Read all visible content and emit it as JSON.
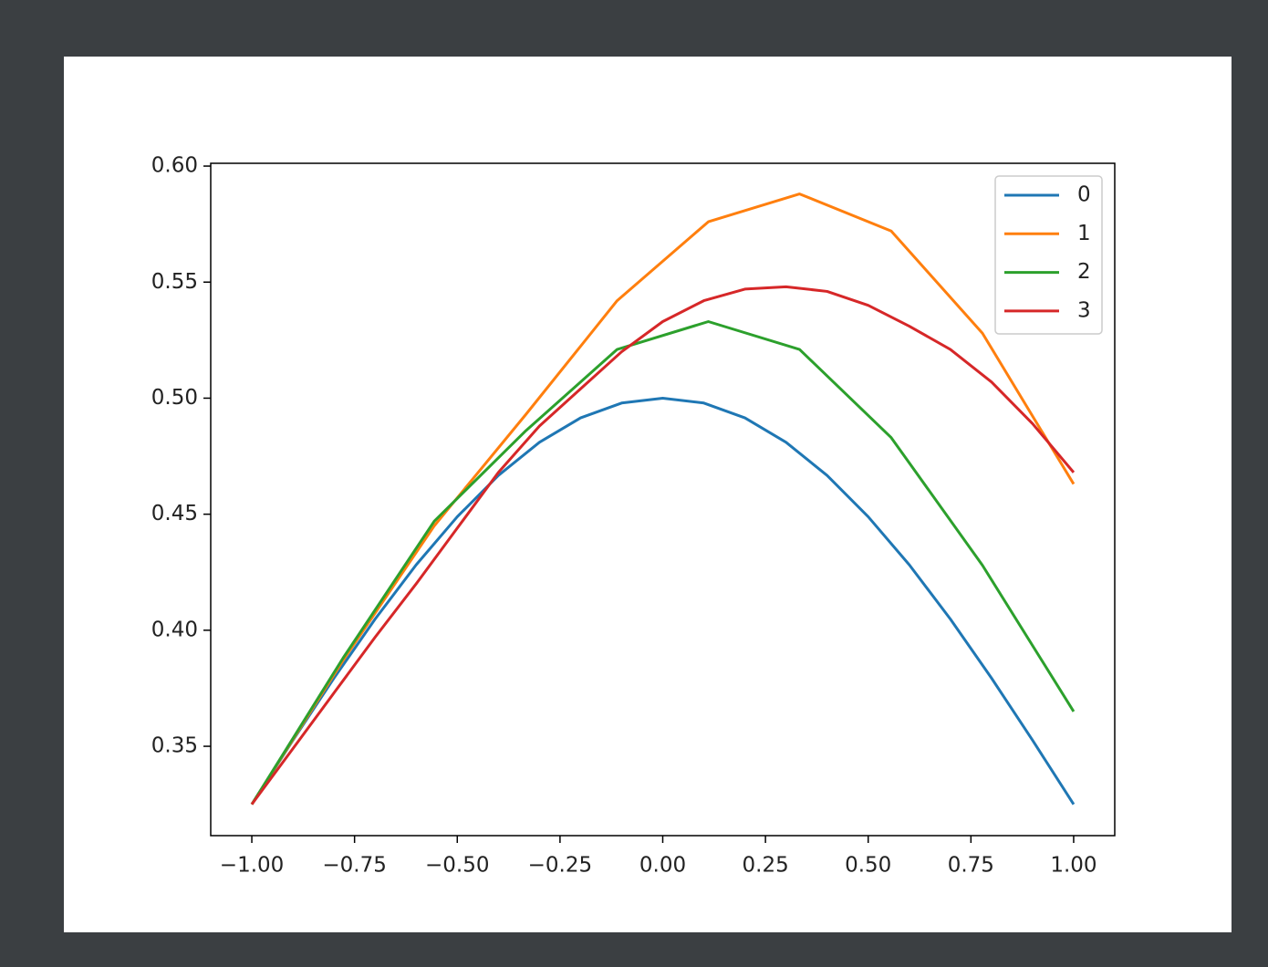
{
  "chart_data": {
    "type": "line",
    "xlim": [
      -1.1,
      1.1
    ],
    "ylim": [
      0.3115,
      0.6012
    ],
    "xticks": [
      {
        "value": -1,
        "label": "−1.00"
      },
      {
        "value": -0.75,
        "label": "−0.75"
      },
      {
        "value": -0.5,
        "label": "−0.50"
      },
      {
        "value": -0.25,
        "label": "−0.25"
      },
      {
        "value": 0,
        "label": "0.00"
      },
      0.25,
      {
        "value": 0.5,
        "label": "0.50"
      },
      0.75,
      {
        "value": 1,
        "label": "1.00"
      }
    ],
    "yticks": [
      0.35,
      {
        "value": 0.4,
        "label": "0.40"
      },
      0.45,
      {
        "value": 0.5,
        "label": "0.50"
      },
      0.55,
      {
        "value": 0.6,
        "label": "0.60"
      }
    ],
    "legend": "upper right",
    "series": [
      {
        "name": "0",
        "color": "#1f77b4",
        "x": [
          -1,
          -0.9,
          -0.8,
          -0.7,
          -0.6,
          -0.5,
          -0.4,
          -0.3,
          -0.2,
          -0.1,
          0,
          0.1,
          0.2,
          0.3,
          0.4,
          0.5,
          0.6,
          0.7,
          0.8,
          0.9,
          1
        ],
        "values": [
          0.325,
          0.3526,
          0.3794,
          0.4048,
          0.4282,
          0.4489,
          0.4667,
          0.481,
          0.4915,
          0.4979,
          0.5,
          0.4979,
          0.4915,
          0.481,
          0.4667,
          0.4489,
          0.4282,
          0.4048,
          0.3794,
          0.3526,
          0.325
        ]
      },
      {
        "name": "1",
        "color": "#ff7f0e",
        "x": [
          -1,
          -0.778,
          -0.556,
          -0.333,
          -0.111,
          0.111,
          0.333,
          0.556,
          0.778,
          1
        ],
        "values": [
          0.325,
          0.387,
          0.445,
          0.493,
          0.542,
          0.576,
          0.588,
          0.572,
          0.528,
          0.463
        ]
      },
      {
        "name": "2",
        "color": "#2ca02c",
        "x": [
          -1,
          -0.778,
          -0.556,
          -0.333,
          -0.111,
          0.111,
          0.333,
          0.556,
          0.778,
          1
        ],
        "values": [
          0.325,
          0.388,
          0.447,
          0.486,
          0.521,
          0.533,
          0.521,
          0.483,
          0.428,
          0.365
        ]
      },
      {
        "name": "3",
        "color": "#d62728",
        "x": [
          -1,
          -0.9,
          -0.8,
          -0.7,
          -0.6,
          -0.5,
          -0.4,
          -0.3,
          -0.2,
          -0.1,
          0,
          0.1,
          0.2,
          0.3,
          0.4,
          0.5,
          0.6,
          0.7,
          0.8,
          0.9,
          1
        ],
        "values": [
          0.325,
          0.349,
          0.373,
          0.397,
          0.42,
          0.444,
          0.468,
          0.488,
          0.504,
          0.52,
          0.533,
          0.542,
          0.547,
          0.548,
          0.546,
          0.54,
          0.531,
          0.521,
          0.507,
          0.489,
          0.468
        ]
      }
    ]
  }
}
